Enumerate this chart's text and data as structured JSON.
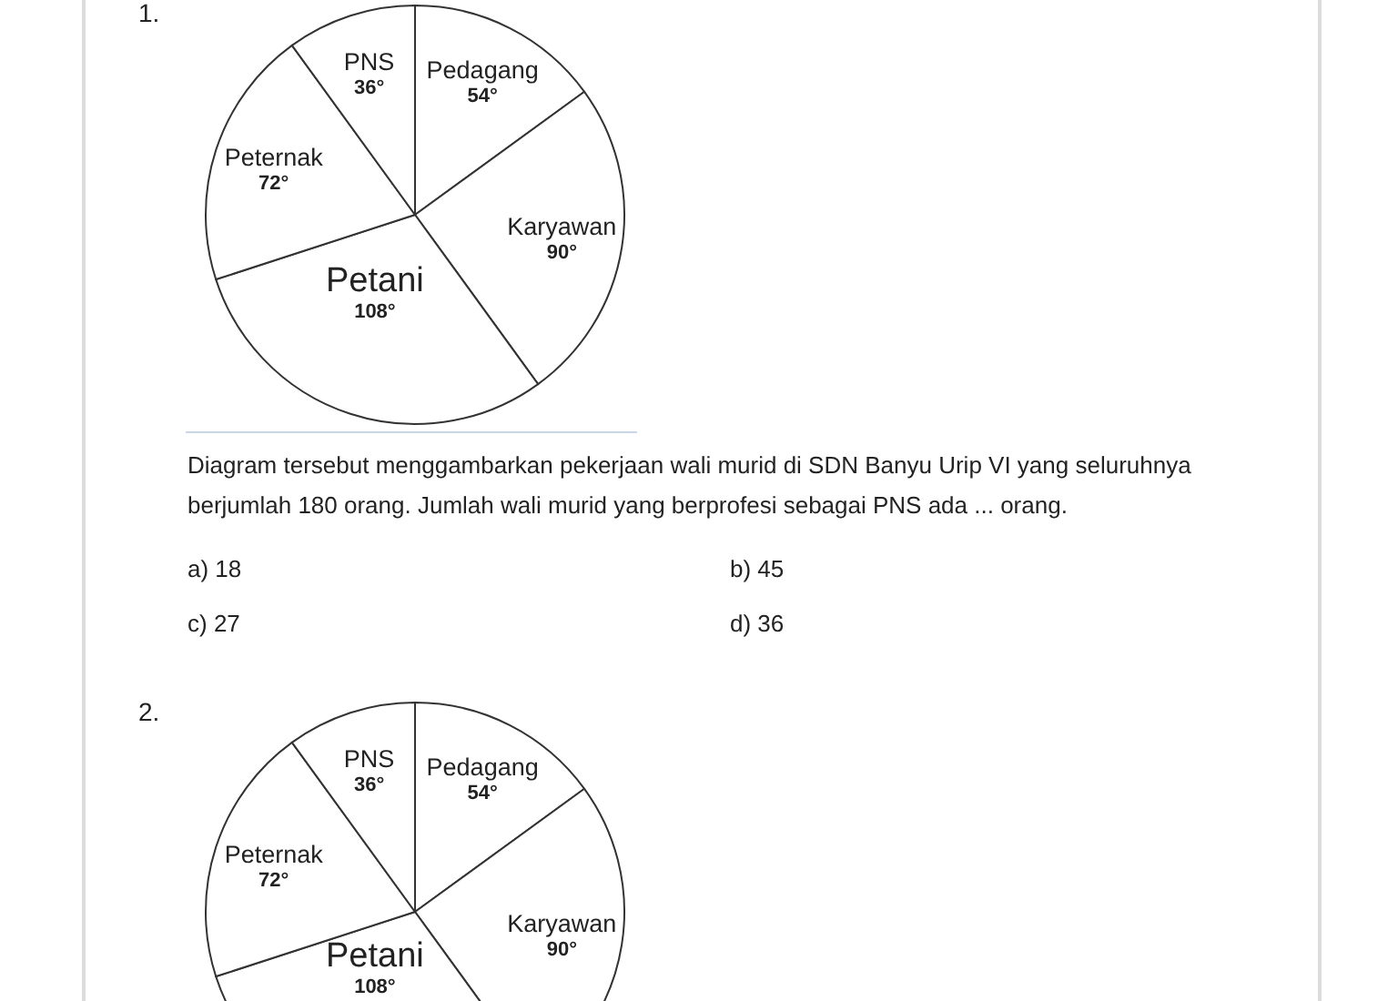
{
  "chart_data": [
    {
      "type": "pie",
      "categories": [
        "Pedagang",
        "Karyawan",
        "Petani",
        "Peternak",
        "PNS"
      ],
      "values": [
        54,
        90,
        108,
        72,
        36
      ],
      "value_labels": [
        "54°",
        "90°",
        "108°",
        "72°",
        "36°"
      ],
      "colors": [
        "#ffffff",
        "#ffffff",
        "#ffffff",
        "#ffffff",
        "#ffffff"
      ],
      "legend": false,
      "annotations": [
        "1.",
        "Diagram tersebut menggambarkan pekerjaan wali murid di SDN Banyu Urip VI yang seluruhnya berjumlah 180 orang. Jumlah wali murid yang berprofesi sebagai PNS ada ... orang.",
        "a) 18",
        "b) 45",
        "c) 27",
        "d) 36"
      ]
    },
    {
      "type": "pie",
      "categories": [
        "Pedagang",
        "Karyawan",
        "Petani",
        "Peternak",
        "PNS"
      ],
      "values": [
        54,
        90,
        108,
        72,
        36
      ],
      "value_labels": [
        "54°",
        "90°",
        "108°",
        "72°",
        "36°"
      ],
      "colors": [
        "#ffffff",
        "#ffffff",
        "#ffffff",
        "#ffffff",
        "#ffffff"
      ],
      "legend": false,
      "annotations": [
        "2."
      ]
    }
  ]
}
